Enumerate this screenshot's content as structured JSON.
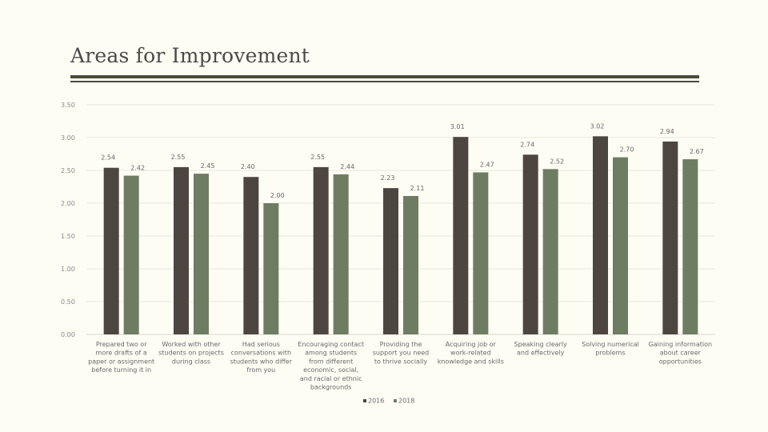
{
  "header": {
    "title": "Areas for Improvement"
  },
  "chart_data": {
    "type": "bar",
    "categories": [
      [
        "Prepared two or",
        "more drafts of a",
        "paper or assignment",
        "before turning it in"
      ],
      [
        "Worked with other",
        "students on projects",
        "during class"
      ],
      [
        "Had serious",
        "conversations with",
        "students who differ",
        "from you"
      ],
      [
        "Encouraging contact",
        "among students",
        "from different",
        "economic, social,",
        "and racial or ethnic",
        "backgrounds"
      ],
      [
        "Providing the",
        "support you need",
        "to thrive socially"
      ],
      [
        "Acquiring job or",
        "work-related",
        "knowledge and skills"
      ],
      [
        "Speaking clearly",
        "and effectively"
      ],
      [
        "Solving numerical",
        "problems"
      ],
      [
        "Gaining information",
        "about career",
        "opportunities"
      ]
    ],
    "series": [
      {
        "name": "2016",
        "color": "#4d4640",
        "values": [
          2.54,
          2.55,
          2.4,
          2.55,
          2.23,
          3.01,
          2.74,
          3.02,
          2.94
        ],
        "labels": [
          "2.54",
          "2.55",
          "2.40",
          "2.55",
          "2.23",
          "3.01",
          "2.74",
          "3.02",
          "2.94"
        ]
      },
      {
        "name": "2018",
        "color": "#6e7d62",
        "values": [
          2.42,
          2.45,
          2.0,
          2.44,
          2.11,
          2.47,
          2.52,
          2.7,
          2.67
        ],
        "labels": [
          "2.42",
          "2.45",
          "2.00",
          "2.44",
          "2.11",
          "2.47",
          "2.52",
          "2.70",
          "2.67"
        ]
      }
    ],
    "ylim": [
      0,
      3.5
    ],
    "yticks": [
      "0.00",
      "0.50",
      "1.00",
      "1.50",
      "2.00",
      "2.50",
      "3.00",
      "3.50"
    ],
    "grid": true,
    "legend_position": "bottom"
  }
}
